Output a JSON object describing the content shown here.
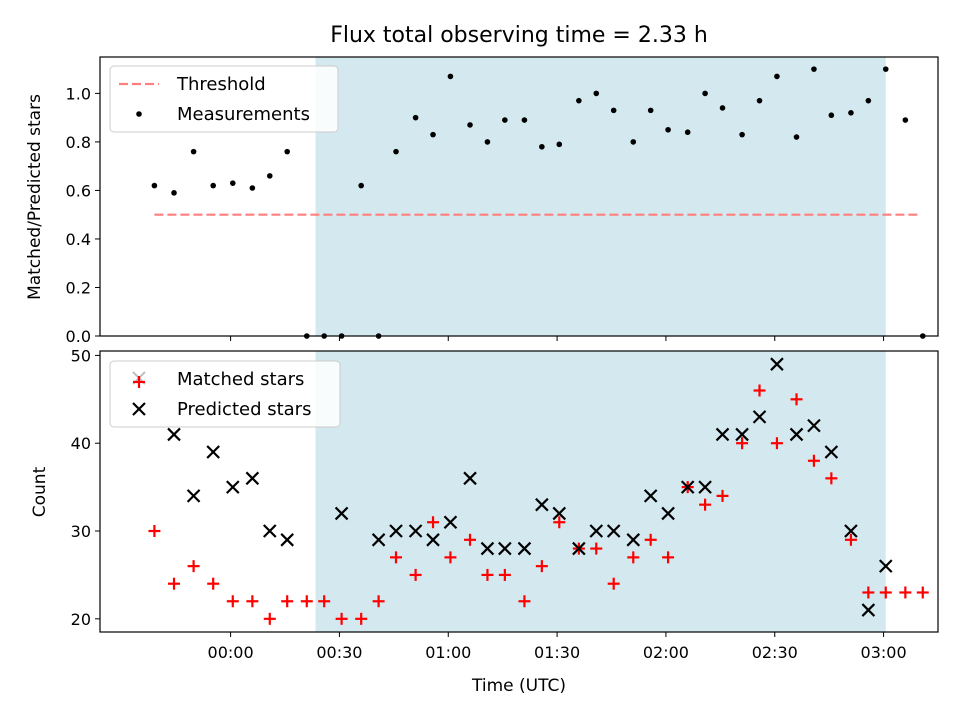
{
  "chart_data": [
    {
      "type": "scatter",
      "title": "Flux total observing time = 2.33 h",
      "xlabel": "",
      "ylabel": "Matched/Predicted stars",
      "ylim": [
        0,
        1.15
      ],
      "yticks": [
        "0.0",
        "0.2",
        "0.4",
        "0.6",
        "0.8",
        "1.0"
      ],
      "xlim_minutes": [
        -60,
        325
      ],
      "shaded_region_minutes": [
        39,
        301
      ],
      "shaded_color": "#d3e9ef",
      "threshold": {
        "value": 0.5,
        "x_start_minutes": -35,
        "x_end_minutes": 316,
        "color": "#ff7f7f"
      },
      "legend": {
        "placement": "top-left",
        "entries": [
          "Threshold",
          "Measurements"
        ]
      },
      "series": [
        {
          "name": "Measurements",
          "color": "#000000",
          "x": [
            -35,
            -26,
            -17,
            -8,
            1,
            10,
            18,
            26,
            35,
            43,
            51,
            60,
            68,
            76,
            85,
            93,
            101,
            110,
            118,
            126,
            135,
            143,
            151,
            160,
            168,
            176,
            185,
            193,
            201,
            210,
            218,
            226,
            235,
            243,
            251,
            260,
            268,
            276,
            285,
            293,
            301,
            310,
            318
          ],
          "y": [
            0.62,
            0.59,
            0.76,
            0.62,
            0.63,
            0.61,
            0.66,
            0.76,
            0.0,
            0.0,
            0.0,
            0.62,
            0.0,
            0.76,
            0.9,
            0.83,
            1.07,
            0.87,
            0.8,
            0.89,
            0.89,
            0.78,
            0.79,
            0.97,
            1.0,
            0.93,
            0.8,
            0.93,
            0.85,
            0.84,
            1.0,
            0.94,
            0.83,
            0.97,
            1.07,
            0.82,
            1.1,
            0.91,
            0.92,
            0.97,
            1.1,
            0.89,
            0.0
          ]
        }
      ]
    },
    {
      "type": "scatter",
      "title": "",
      "xlabel": "Time (UTC)",
      "ylabel": "Count",
      "ylim": [
        18.5,
        50.5
      ],
      "yticks": [
        "20",
        "30",
        "40",
        "50"
      ],
      "xlim_minutes": [
        -60,
        325
      ],
      "xticks": [
        "00:00",
        "00:30",
        "01:00",
        "01:30",
        "02:00",
        "02:30",
        "03:00"
      ],
      "xticks_minutes": [
        0,
        50,
        100,
        150,
        200,
        250,
        300
      ],
      "shaded_region_minutes": [
        39,
        301
      ],
      "shaded_color": "#d3e9ef",
      "legend": {
        "placement": "top-left",
        "entries": [
          "Matched stars",
          "Predicted stars"
        ]
      },
      "series": [
        {
          "name": "Matched stars",
          "marker": "+",
          "color": "#ff0000",
          "x": [
            -35,
            -26,
            -17,
            -8,
            1,
            10,
            18,
            26,
            35,
            43,
            51,
            60,
            68,
            76,
            85,
            93,
            101,
            110,
            118,
            126,
            135,
            143,
            151,
            160,
            168,
            176,
            185,
            193,
            201,
            210,
            218,
            226,
            235,
            243,
            251,
            260,
            268,
            276,
            285,
            293,
            301,
            310,
            318
          ],
          "y": [
            30,
            24,
            26,
            24,
            22,
            22,
            20,
            22,
            22,
            22,
            20,
            20,
            22,
            27,
            25,
            31,
            27,
            29,
            25,
            25,
            22,
            26,
            31,
            28,
            28,
            24,
            27,
            29,
            27,
            35,
            33,
            34,
            40,
            46,
            40,
            45,
            38,
            36,
            29,
            23,
            23,
            23,
            23
          ]
        },
        {
          "name": "Predicted stars",
          "marker": "x",
          "color": "#000000",
          "x": [
            -26,
            -17,
            -8,
            1,
            10,
            18,
            26,
            51,
            68,
            76,
            85,
            93,
            101,
            110,
            118,
            126,
            135,
            143,
            151,
            160,
            168,
            176,
            185,
            193,
            201,
            210,
            218,
            226,
            235,
            243,
            251,
            260,
            268,
            276,
            285,
            293,
            301
          ],
          "y": [
            41,
            34,
            39,
            35,
            36,
            30,
            29,
            32,
            29,
            30,
            30,
            29,
            31,
            36,
            28,
            28,
            28,
            33,
            32,
            28,
            30,
            30,
            29,
            34,
            32,
            35,
            35,
            41,
            41,
            43,
            49,
            41,
            42,
            39,
            30,
            21,
            26
          ]
        }
      ]
    }
  ]
}
